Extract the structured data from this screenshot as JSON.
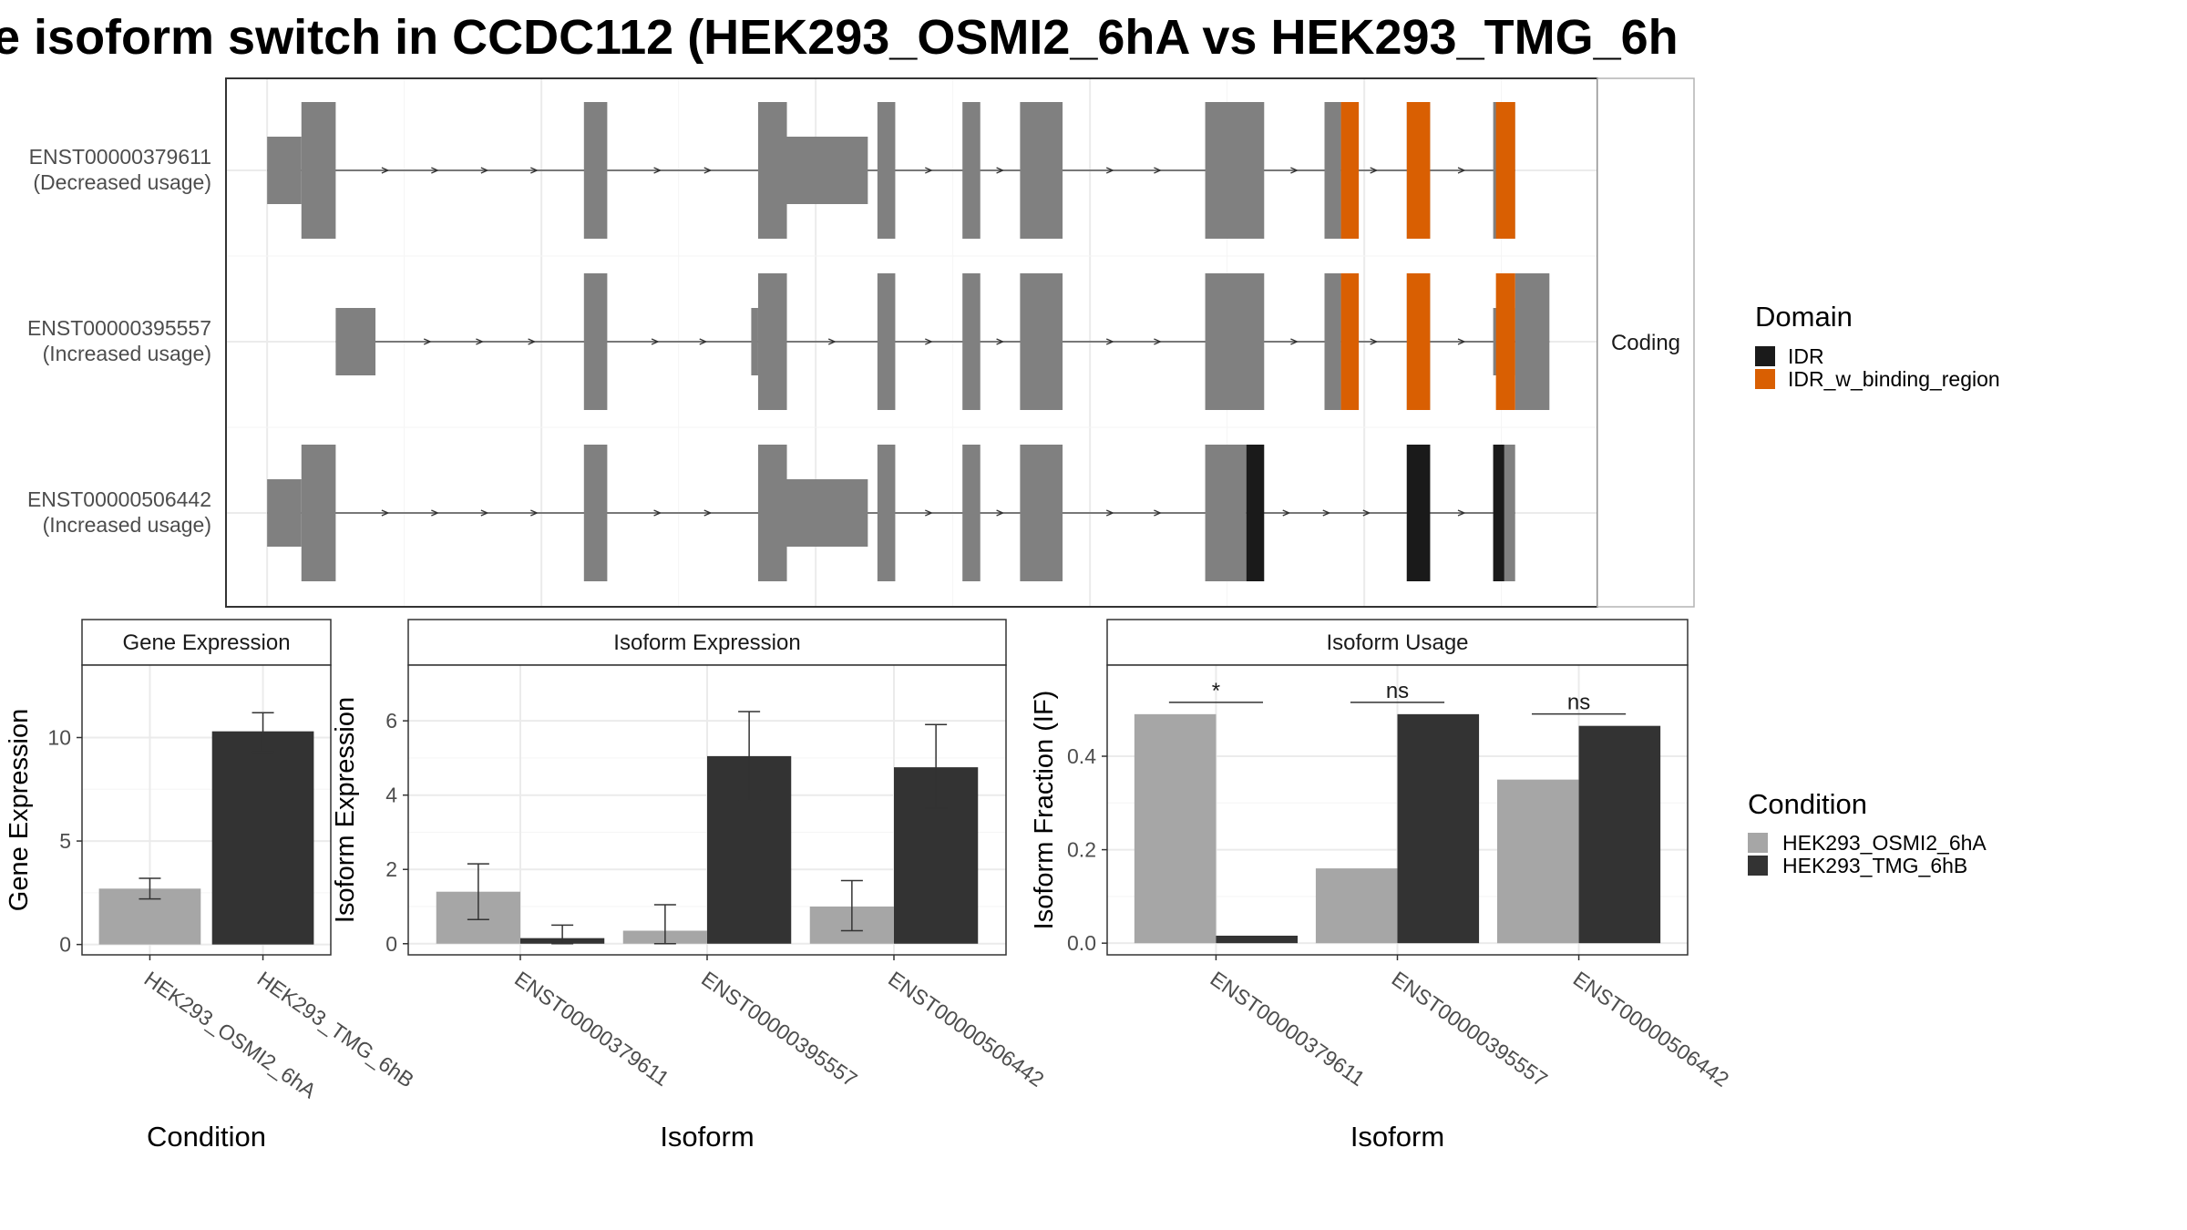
{
  "title": "e isoform switch in CCDC112 (HEK293_OSMI2_6hA vs HEK293_TMG_6h",
  "colors": {
    "exon": "#808080",
    "IDR": "#1a1a1a",
    "IDR_w_binding_region": "#d95f02",
    "cond_A": "#a6a6a6",
    "cond_B": "#333333",
    "grid": "#ebebeb",
    "border": "#333333",
    "strip_border": "#b3b3b3"
  },
  "chart_data": [
    {
      "type": "gene_structure",
      "strip_label": "Coding",
      "legend_title": "Domain",
      "legend_items": [
        {
          "label": "IDR",
          "color": "#1a1a1a"
        },
        {
          "label": "IDR_w_binding_region",
          "color": "#d95f02"
        }
      ],
      "isoforms": [
        {
          "id": "ENST00000379611",
          "usage": "(Decreased usage)",
          "utr": [
            [
              0.0,
              2.5
            ],
            [
              37.5,
              43.8
            ]
          ],
          "cds": [
            [
              2.5,
              5.0
            ],
            [
              23.1,
              24.8
            ],
            [
              35.8,
              37.9
            ],
            [
              44.5,
              45.8
            ],
            [
              50.7,
              52.0
            ],
            [
              54.9,
              58.0
            ],
            [
              68.4,
              72.7
            ],
            [
              77.1,
              78.3
            ],
            [
              83.1,
              84.8
            ],
            [
              89.4,
              91.0
            ]
          ],
          "domains": [
            {
              "start": 78.3,
              "end": 79.6,
              "domain": "IDR_w_binding_region"
            },
            {
              "start": 83.1,
              "end": 84.8,
              "domain": "IDR_w_binding_region"
            },
            {
              "start": 89.6,
              "end": 91.0,
              "domain": "IDR_w_binding_region"
            }
          ]
        },
        {
          "id": "ENST00000395557",
          "usage": "(Increased usage)",
          "utr": [
            [
              5.0,
              7.9
            ],
            [
              35.3,
              35.8
            ],
            [
              89.4,
              91.0
            ]
          ],
          "cds": [
            [
              23.1,
              24.8
            ],
            [
              35.8,
              37.9
            ],
            [
              44.5,
              45.8
            ],
            [
              50.7,
              52.0
            ],
            [
              54.9,
              58.0
            ],
            [
              68.4,
              72.7
            ],
            [
              77.1,
              78.3
            ],
            [
              83.1,
              84.8
            ],
            [
              91.0,
              93.5
            ]
          ],
          "domains": [
            {
              "start": 78.3,
              "end": 79.6,
              "domain": "IDR_w_binding_region"
            },
            {
              "start": 83.1,
              "end": 84.8,
              "domain": "IDR_w_binding_region"
            },
            {
              "start": 89.6,
              "end": 91.0,
              "domain": "IDR_w_binding_region"
            }
          ]
        },
        {
          "id": "ENST00000506442",
          "usage": "(Increased usage)",
          "utr": [
            [
              0.0,
              2.5
            ],
            [
              37.5,
              43.8
            ]
          ],
          "cds": [
            [
              2.5,
              5.0
            ],
            [
              23.1,
              24.8
            ],
            [
              35.8,
              37.9
            ],
            [
              44.5,
              45.8
            ],
            [
              50.7,
              52.0
            ],
            [
              54.9,
              58.0
            ],
            [
              68.4,
              71.4
            ],
            [
              83.1,
              84.8
            ],
            [
              89.4,
              91.0
            ]
          ],
          "domains": [
            {
              "start": 71.4,
              "end": 72.7,
              "domain": "IDR"
            },
            {
              "start": 83.1,
              "end": 84.8,
              "domain": "IDR"
            },
            {
              "start": 89.4,
              "end": 90.2,
              "domain": "IDR"
            }
          ]
        }
      ]
    },
    {
      "type": "bar",
      "strip_title": "Gene Expression",
      "xlabel": "Condition",
      "ylabel": "Gene Expression",
      "ylim": [
        -0.5,
        13.5
      ],
      "yticks": [
        0,
        5,
        10
      ],
      "categories": [
        "HEK293_OSMI2_6hA",
        "HEK293_TMG_6hB"
      ],
      "values": [
        2.7,
        10.3
      ],
      "errors": [
        [
          2.2,
          3.2
        ],
        [
          9.3,
          11.2
        ]
      ]
    },
    {
      "type": "bar",
      "strip_title": "Isoform Expression",
      "xlabel": "Isoform",
      "ylabel": "Isoform Expression",
      "ylim": [
        -0.3,
        7.5
      ],
      "yticks": [
        0,
        2,
        4,
        6
      ],
      "categories": [
        "ENST00000379611",
        "ENST00000395557",
        "ENST00000506442"
      ],
      "series": [
        {
          "name": "HEK293_OSMI2_6hA",
          "values": [
            1.4,
            0.35,
            1.0
          ],
          "errors": [
            [
              0.65,
              2.15
            ],
            [
              0.0,
              1.05
            ],
            [
              0.35,
              1.7
            ]
          ]
        },
        {
          "name": "HEK293_TMG_6hB",
          "values": [
            0.15,
            5.05,
            4.75
          ],
          "errors": [
            [
              0.0,
              0.5
            ],
            [
              3.85,
              6.25
            ],
            [
              3.65,
              5.9
            ]
          ]
        }
      ]
    },
    {
      "type": "bar",
      "strip_title": "Isoform Usage",
      "xlabel": "Isoform",
      "ylabel": "Isoform Fraction (IF)",
      "ylim": [
        -0.025,
        0.595
      ],
      "yticks": [
        0.0,
        0.2,
        0.4
      ],
      "ytick_labels": [
        "0.0",
        "0.2",
        "0.4"
      ],
      "categories": [
        "ENST00000379611",
        "ENST00000395557",
        "ENST00000506442"
      ],
      "series": [
        {
          "name": "HEK293_OSMI2_6hA",
          "values": [
            0.49,
            0.16,
            0.35
          ]
        },
        {
          "name": "HEK293_TMG_6hB",
          "values": [
            0.016,
            0.49,
            0.465
          ]
        }
      ],
      "significance": [
        "*",
        "ns",
        "ns"
      ]
    }
  ],
  "condition_legend": {
    "title": "Condition",
    "items": [
      {
        "label": "HEK293_OSMI2_6hA",
        "color": "#a6a6a6"
      },
      {
        "label": "HEK293_TMG_6hB",
        "color": "#333333"
      }
    ]
  }
}
